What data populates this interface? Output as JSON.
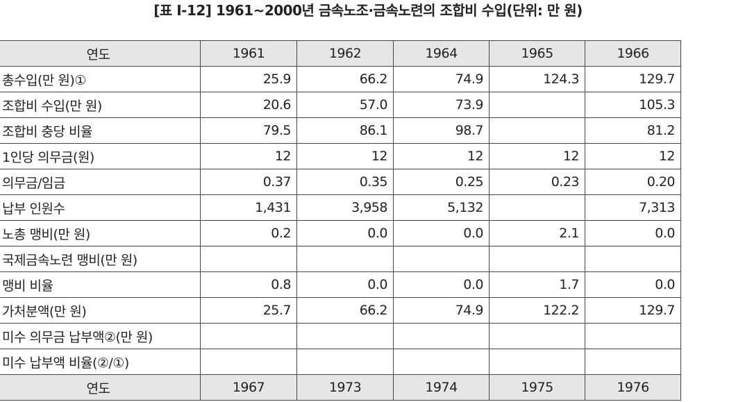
{
  "title": "[표 Ⅰ-12] 1961~2000년 금속노조·금속노련의 조합비 수입(단위: 만 원)",
  "table": {
    "header": [
      "연도",
      "1961",
      "1962",
      "1964",
      "1965",
      "1966"
    ],
    "rows": [
      [
        "총수입(만 원)①",
        "25.9",
        "66.2",
        "74.9",
        "124.3",
        "129.7"
      ],
      [
        "조합비 수입(만 원)",
        "20.6",
        "57.0",
        "73.9",
        null,
        "105.3"
      ],
      [
        "조합비 충당 비율",
        "79.5",
        "86.1",
        "98.7",
        null,
        "81.2"
      ],
      [
        "1인당 의무금(원)",
        "12",
        "12",
        "12",
        "12",
        "12"
      ],
      [
        "의무금/임금",
        "0.37",
        "0.35",
        "0.25",
        "0.23",
        "0.20"
      ],
      [
        "납부 인원수",
        "1,431",
        "3,958",
        "5,132",
        null,
        "7,313"
      ],
      [
        "노총 맹비(만 원)",
        "0.2",
        "0.0",
        "0.0",
        "2.1",
        "0.0"
      ],
      [
        "국제금속노련 맹비(만 원)",
        null,
        null,
        null,
        null,
        null
      ],
      [
        "맹비 비율",
        "0.8",
        "0.0",
        "0.0",
        "1.7",
        "0.0"
      ],
      [
        "가처분액(만 원)",
        "25.7",
        "66.2",
        "74.9",
        "122.2",
        "129.7"
      ],
      [
        "미수 의무금 납부액②(만 원)",
        null,
        null,
        null,
        null,
        null
      ],
      [
        "미수 납부액 비율(②/①)",
        null,
        null,
        null,
        null,
        null
      ]
    ],
    "header2": [
      "연도",
      "1967",
      "1973",
      "1974",
      "1975",
      "1976"
    ]
  }
}
